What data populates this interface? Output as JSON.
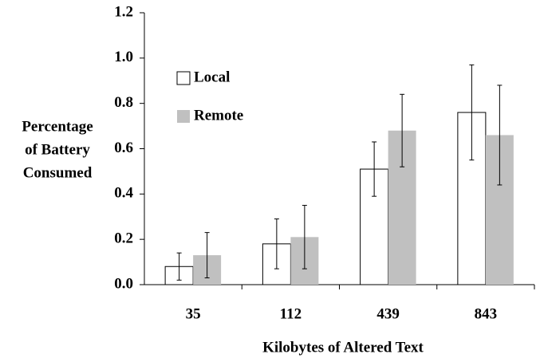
{
  "chart_data": {
    "type": "bar",
    "xlabel": "Kilobytes of Altered Text",
    "ylabel": [
      "Percentage",
      "of Battery",
      "Consumed"
    ],
    "categories": [
      "35",
      "112",
      "439",
      "843"
    ],
    "series": [
      {
        "name": "Local",
        "color": "#ffffff",
        "values": [
          0.08,
          0.18,
          0.51,
          0.76
        ],
        "errors": [
          0.06,
          0.11,
          0.12,
          0.21
        ]
      },
      {
        "name": "Remote",
        "color": "#c0c0c0",
        "values": [
          0.13,
          0.21,
          0.68,
          0.66
        ],
        "errors": [
          0.1,
          0.14,
          0.16,
          0.22
        ]
      }
    ],
    "ylim": [
      0,
      1.2
    ],
    "yticks": [
      {
        "value": 0,
        "label": "0.0"
      },
      {
        "value": 0.2,
        "label": "0.2"
      },
      {
        "value": 0.4,
        "label": "0.4"
      },
      {
        "value": 0.6,
        "label": "0.6"
      },
      {
        "value": 0.8,
        "label": "0.8"
      },
      {
        "value": 1.0,
        "label": "1.0"
      },
      {
        "value": 1.2,
        "label": "1.2"
      }
    ],
    "legend": "upper left"
  }
}
